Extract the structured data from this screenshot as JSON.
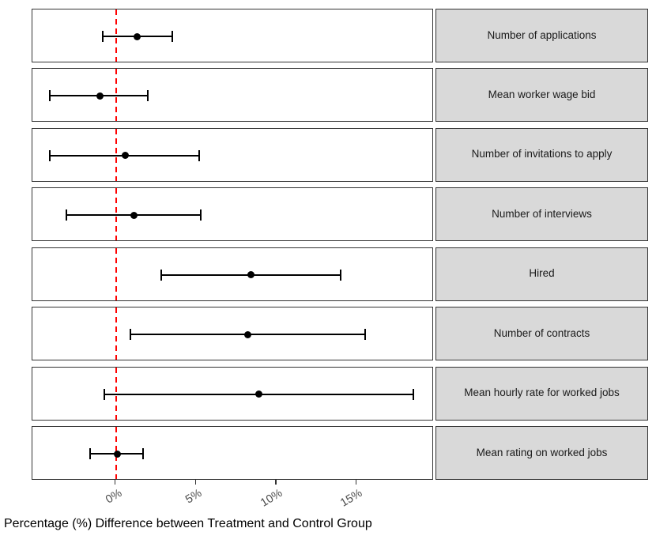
{
  "chart_data": {
    "type": "scatter",
    "subtype": "faceted-horizontal-forest-plot",
    "title": "",
    "xlabel": "Percentage (%) Difference between Treatment and Control Group",
    "ylabel": "",
    "xlim": [
      -5.2,
      19.8
    ],
    "x_ticks": [
      0,
      5,
      10,
      15
    ],
    "x_tick_labels": [
      "0%",
      "5%",
      "10%",
      "15%"
    ],
    "reference_line_x": 0,
    "grid": false,
    "legend": false,
    "facets": [
      {
        "label": "Number of applications",
        "estimate": 1.3,
        "ci_low": -0.8,
        "ci_high": 3.5
      },
      {
        "label": "Mean worker wage bid",
        "estimate": -1.0,
        "ci_low": -4.1,
        "ci_high": 2.0
      },
      {
        "label": "Number of invitations to apply",
        "estimate": 0.6,
        "ci_low": -4.1,
        "ci_high": 5.2
      },
      {
        "label": "Number of interviews",
        "estimate": 1.1,
        "ci_low": -3.1,
        "ci_high": 5.3
      },
      {
        "label": "Hired",
        "estimate": 8.4,
        "ci_low": 2.8,
        "ci_high": 14.0
      },
      {
        "label": "Number of contracts",
        "estimate": 8.2,
        "ci_low": 0.9,
        "ci_high": 15.5
      },
      {
        "label": "Mean hourly rate for worked jobs",
        "estimate": 8.9,
        "ci_low": -0.7,
        "ci_high": 18.5
      },
      {
        "label": "Mean rating on worked jobs",
        "estimate": 0.1,
        "ci_low": -1.6,
        "ci_high": 1.7
      }
    ],
    "colors": {
      "point": "#000000",
      "errorbar": "#000000",
      "reference_line": "#FF0000",
      "strip_background": "#D9D9D9",
      "panel_border": "#333333",
      "tick_label": "#4D4D4D",
      "axis_title": "#000000",
      "background": "#FFFFFF"
    }
  }
}
